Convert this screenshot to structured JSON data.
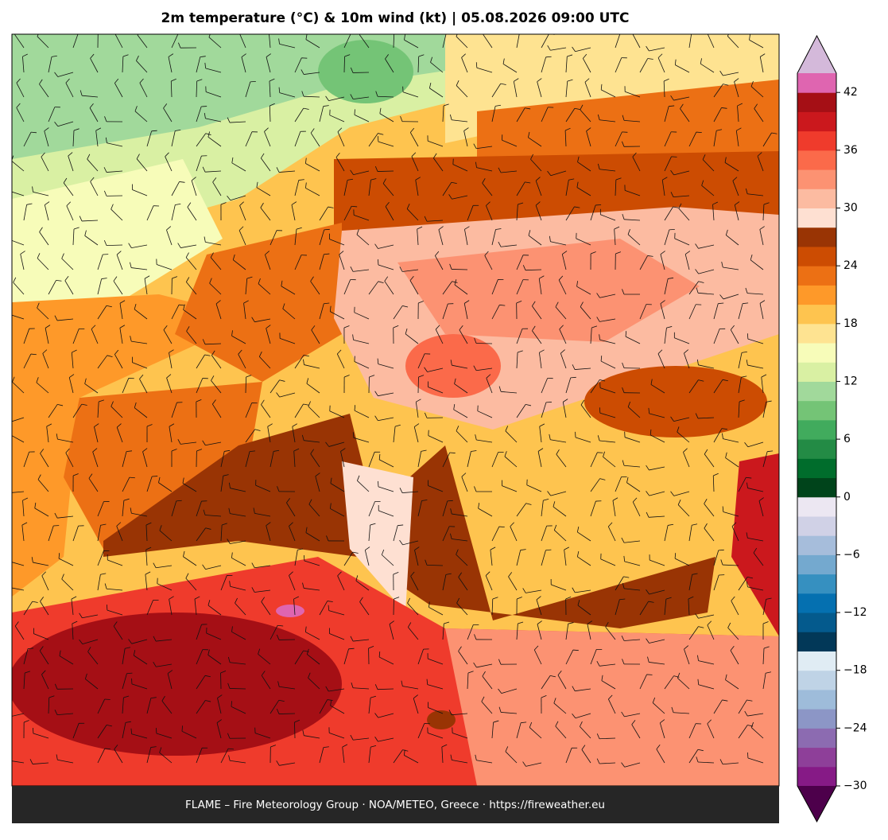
{
  "title": "2m temperature (°C) & 10m wind (kt)  |  05.08.2026 09:00 UTC",
  "footer": "FLAME – Fire Meteorology Group · NOA/METEO, Greece · https://fireweather.eu",
  "colorbar": {
    "clim": [
      -30,
      44
    ],
    "ticks": [
      {
        "value": -30,
        "label": "−30"
      },
      {
        "value": -24,
        "label": "−24"
      },
      {
        "value": -18,
        "label": "−18"
      },
      {
        "value": -12,
        "label": "−12"
      },
      {
        "value": -6,
        "label": "−6"
      },
      0,
      6,
      12,
      18,
      24,
      30,
      36,
      42
    ],
    "colors": [
      "#861a86",
      "#8e3f99",
      "#8c6bb1",
      "#8c96c6",
      "#9ebcda",
      "#bfd3e6",
      "#e0ecf4",
      "#023858",
      "#045a8d",
      "#0570b0",
      "#3690c0",
      "#74a9cf",
      "#a6bddb",
      "#d0d1e6",
      "#ece7f2",
      "#00441b",
      "#006d2c",
      "#238b45",
      "#41ab5d",
      "#74c476",
      "#a1d99b",
      "#d9f0a3",
      "#f7fcb9",
      "#fee391",
      "#fec44f",
      "#fe9929",
      "#ec7014",
      "#cc4c02",
      "#993404",
      "#fee0d2",
      "#fcbba1",
      "#fc9272",
      "#fb6a4a",
      "#ef3b2c",
      "#cb181d",
      "#a50f15",
      "#df65b0"
    ],
    "over_color": "#d4b9da",
    "under_color": "#4d004b"
  }
}
